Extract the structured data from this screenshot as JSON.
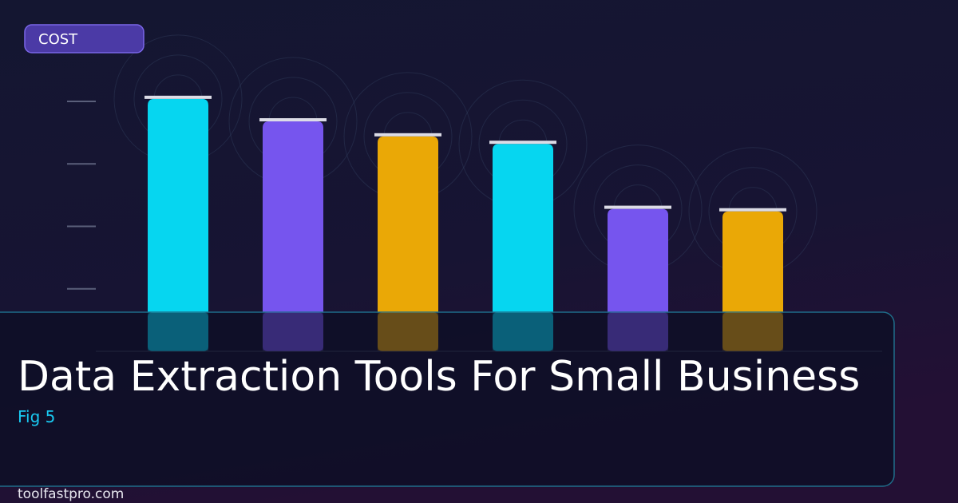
{
  "chart_data": {
    "type": "bar",
    "title": "Data Extraction Tools For Small Business",
    "subtitle": "Fig 5",
    "y_label": "COST",
    "source": "toolfastpro.com",
    "categories": [
      null,
      null,
      null,
      null,
      null,
      null
    ],
    "values": [
      101,
      92,
      86,
      83,
      57,
      56
    ],
    "colors": [
      "#06d6f0",
      "#7655ee",
      "#eaa806",
      "#06d6f0",
      "#7655ee",
      "#eaa806"
    ],
    "ylim": [
      0,
      100
    ],
    "yticks": [
      25,
      50,
      75,
      100
    ]
  }
}
